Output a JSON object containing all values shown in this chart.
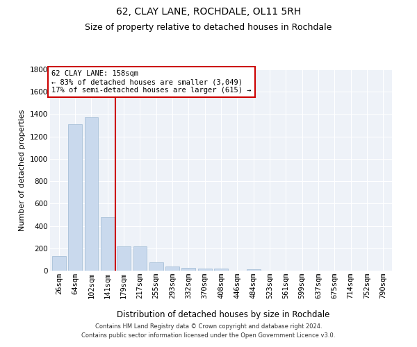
{
  "title": "62, CLAY LANE, ROCHDALE, OL11 5RH",
  "subtitle": "Size of property relative to detached houses in Rochdale",
  "xlabel": "Distribution of detached houses by size in Rochdale",
  "ylabel": "Number of detached properties",
  "categories": [
    "26sqm",
    "64sqm",
    "102sqm",
    "141sqm",
    "179sqm",
    "217sqm",
    "255sqm",
    "293sqm",
    "332sqm",
    "370sqm",
    "408sqm",
    "446sqm",
    "484sqm",
    "523sqm",
    "561sqm",
    "599sqm",
    "637sqm",
    "675sqm",
    "714sqm",
    "752sqm",
    "790sqm"
  ],
  "values": [
    130,
    1310,
    1370,
    480,
    220,
    220,
    75,
    40,
    25,
    20,
    20,
    0,
    15,
    0,
    0,
    0,
    0,
    0,
    0,
    0,
    0
  ],
  "bar_color": "#c9d9ed",
  "bar_edgecolor": "#a8c0d8",
  "vline_x_index": 3,
  "vline_color": "#cc0000",
  "annotation_title": "62 CLAY LANE: 158sqm",
  "annotation_line1": "← 83% of detached houses are smaller (3,049)",
  "annotation_line2": "17% of semi-detached houses are larger (615) →",
  "annotation_box_facecolor": "#ffffff",
  "annotation_box_edgecolor": "#cc0000",
  "ylim": [
    0,
    1800
  ],
  "yticks": [
    0,
    200,
    400,
    600,
    800,
    1000,
    1200,
    1400,
    1600,
    1800
  ],
  "background_color": "#eef2f8",
  "grid_color": "#ffffff",
  "footer_line1": "Contains HM Land Registry data © Crown copyright and database right 2024.",
  "footer_line2": "Contains public sector information licensed under the Open Government Licence v3.0.",
  "title_fontsize": 10,
  "subtitle_fontsize": 9,
  "xlabel_fontsize": 8.5,
  "ylabel_fontsize": 8,
  "tick_fontsize": 7.5,
  "ann_fontsize": 7.5,
  "footer_fontsize": 6
}
